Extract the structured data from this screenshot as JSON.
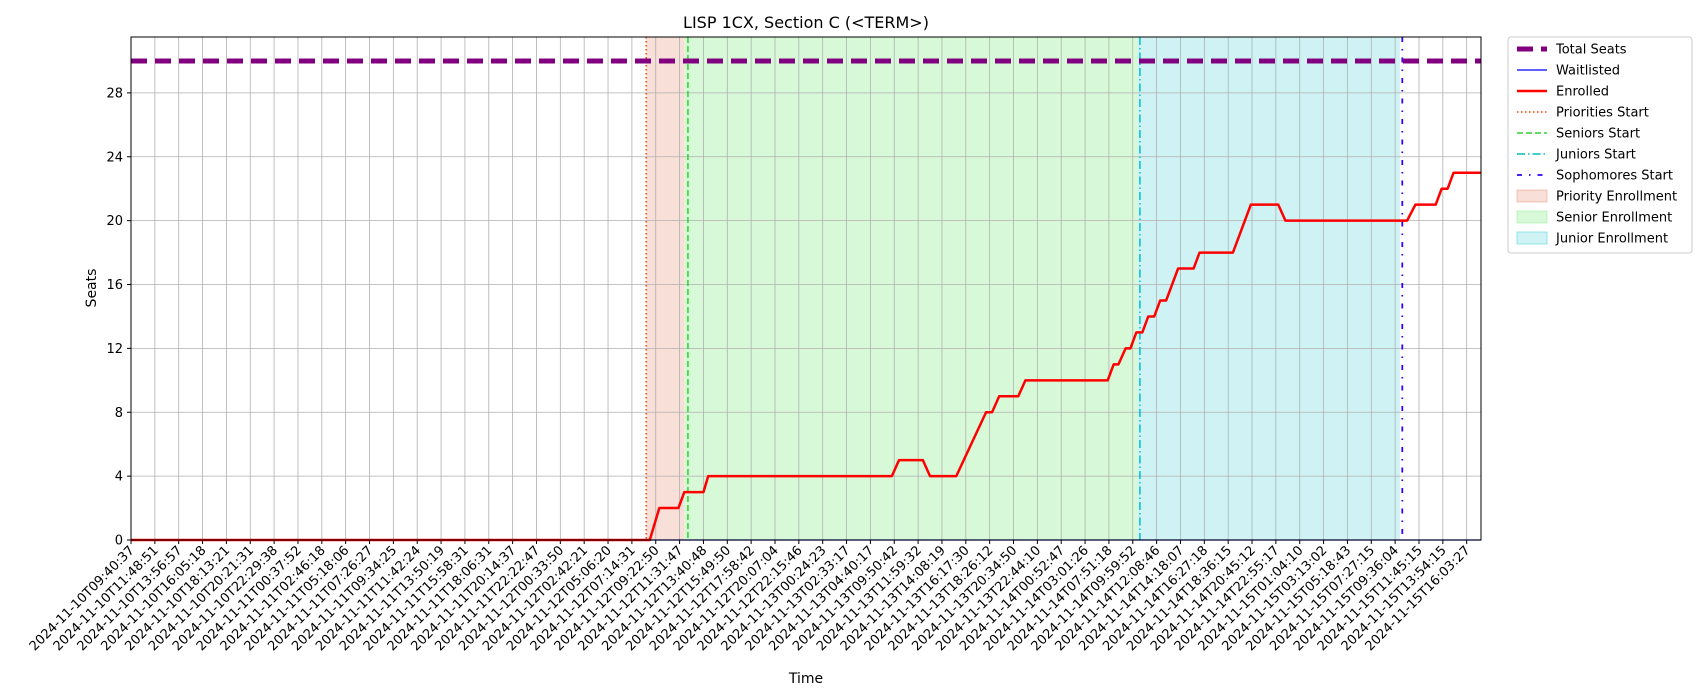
{
  "chart_data": {
    "type": "line",
    "title": "LISP 1CX, Section C (<TERM>)",
    "xlabel": "Time",
    "ylabel": "Seats",
    "grid": true,
    "legend_position": "outside-top-right",
    "y_ticks": [
      0,
      4,
      8,
      12,
      16,
      20,
      24,
      28
    ],
    "ylim": [
      0,
      31.5
    ],
    "x_tick_labels": [
      "2024-11-10T09:40:37",
      "2024-11-10T11:48:51",
      "2024-11-10T13:56:57",
      "2024-11-10T16:05:18",
      "2024-11-10T18:13:21",
      "2024-11-10T20:21:31",
      "2024-11-10T22:29:38",
      "2024-11-11T00:37:52",
      "2024-11-11T02:46:18",
      "2024-11-11T05:18:06",
      "2024-11-11T07:26:27",
      "2024-11-11T09:34:25",
      "2024-11-11T11:42:24",
      "2024-11-11T13:50:19",
      "2024-11-11T15:58:31",
      "2024-11-11T18:06:31",
      "2024-11-11T20:14:37",
      "2024-11-11T22:22:47",
      "2024-11-12T00:33:50",
      "2024-11-12T02:42:21",
      "2024-11-12T05:06:20",
      "2024-11-12T07:14:31",
      "2024-11-12T09:22:50",
      "2024-11-12T11:31:47",
      "2024-11-12T13:40:48",
      "2024-11-12T15:49:50",
      "2024-11-12T17:58:42",
      "2024-11-12T20:07:04",
      "2024-11-12T22:15:46",
      "2024-11-13T00:24:23",
      "2024-11-13T02:33:17",
      "2024-11-13T04:40:17",
      "2024-11-13T09:50:42",
      "2024-11-13T11:59:32",
      "2024-11-13T14:08:19",
      "2024-11-13T16:17:30",
      "2024-11-13T18:26:12",
      "2024-11-13T20:34:50",
      "2024-11-13T22:44:10",
      "2024-11-14T00:52:47",
      "2024-11-14T03:01:26",
      "2024-11-14T07:51:18",
      "2024-11-14T09:59:52",
      "2024-11-14T12:08:46",
      "2024-11-14T14:18:07",
      "2024-11-14T16:27:18",
      "2024-11-14T18:36:15",
      "2024-11-14T20:45:12",
      "2024-11-14T22:55:17",
      "2024-11-15T01:04:10",
      "2024-11-15T03:13:02",
      "2024-11-15T05:18:43",
      "2024-11-15T07:27:15",
      "2024-11-15T09:36:04",
      "2024-11-15T11:45:15",
      "2024-11-15T13:54:15",
      "2024-11-15T16:03:27"
    ],
    "x_range": [
      0,
      56.6
    ],
    "series": [
      {
        "name": "Total Seats",
        "color": "#800080",
        "style": "thick-dashed",
        "points": [
          [
            0,
            30
          ],
          [
            56.6,
            30
          ]
        ]
      },
      {
        "name": "Waitlisted",
        "color": "#0000ff",
        "style": "solid-thin",
        "points": [
          [
            0,
            0
          ],
          [
            56.6,
            0
          ]
        ]
      },
      {
        "name": "Enrolled",
        "color": "#ff0000",
        "style": "solid-thick",
        "points": [
          [
            0,
            0
          ],
          [
            21.75,
            0
          ],
          [
            22.15,
            2
          ],
          [
            22.95,
            2
          ],
          [
            23.2,
            3
          ],
          [
            24.0,
            3
          ],
          [
            24.2,
            4
          ],
          [
            31.9,
            4
          ],
          [
            32.2,
            5
          ],
          [
            33.2,
            5
          ],
          [
            33.5,
            4
          ],
          [
            34.6,
            4
          ],
          [
            35.85,
            8
          ],
          [
            36.1,
            8
          ],
          [
            36.4,
            9
          ],
          [
            37.2,
            9
          ],
          [
            37.5,
            10
          ],
          [
            40.95,
            10
          ],
          [
            41.2,
            11
          ],
          [
            41.4,
            11
          ],
          [
            41.7,
            12
          ],
          [
            41.9,
            12
          ],
          [
            42.15,
            13
          ],
          [
            42.4,
            13
          ],
          [
            42.65,
            14
          ],
          [
            42.9,
            14
          ],
          [
            43.15,
            15
          ],
          [
            43.4,
            15
          ],
          [
            43.9,
            17
          ],
          [
            44.55,
            17
          ],
          [
            44.8,
            18
          ],
          [
            46.2,
            18
          ],
          [
            46.95,
            21
          ],
          [
            48.1,
            21
          ],
          [
            48.4,
            20
          ],
          [
            53.5,
            20
          ],
          [
            53.85,
            21
          ],
          [
            54.7,
            21
          ],
          [
            54.95,
            22
          ],
          [
            55.2,
            22
          ],
          [
            55.45,
            23
          ],
          [
            56.6,
            23
          ]
        ]
      }
    ],
    "markers": [
      {
        "name": "Priorities Start",
        "x": 21.6,
        "color": "#ff4500",
        "style": "dotted"
      },
      {
        "name": "Seniors Start",
        "x": 23.35,
        "color": "#32cd32",
        "style": "dashed"
      },
      {
        "name": "Juniors Start",
        "x": 42.3,
        "color": "#00bfbf",
        "style": "dashdot"
      },
      {
        "name": "Sophomores Start",
        "x": 53.3,
        "color": "#3300ff",
        "style": "sparse-dashdot"
      }
    ],
    "regions": [
      {
        "name": "Priority Enrollment",
        "x0": 21.6,
        "x1": 23.2,
        "color": "#e9967a",
        "alpha": 0.3
      },
      {
        "name": "Senior Enrollment",
        "x0": 23.2,
        "x1": 42.2,
        "color": "#90ee90",
        "alpha": 0.35
      },
      {
        "name": "Junior Enrollment",
        "x0": 42.2,
        "x1": 53.2,
        "color": "#40d0d8",
        "alpha": 0.25
      }
    ],
    "legend": [
      {
        "label": "Total Seats",
        "kind": "line",
        "color": "#800080",
        "style": "thick-dashed"
      },
      {
        "label": "Waitlisted",
        "kind": "line",
        "color": "#0000ff",
        "style": "solid-thin"
      },
      {
        "label": "Enrolled",
        "kind": "line",
        "color": "#ff0000",
        "style": "solid-thick"
      },
      {
        "label": "Priorities Start",
        "kind": "line",
        "color": "#ff4500",
        "style": "dotted"
      },
      {
        "label": "Seniors Start",
        "kind": "line",
        "color": "#32cd32",
        "style": "dashed"
      },
      {
        "label": "Juniors Start",
        "kind": "line",
        "color": "#00bfbf",
        "style": "dashdot"
      },
      {
        "label": "Sophomores Start",
        "kind": "line",
        "color": "#3300ff",
        "style": "sparse-dashdot"
      },
      {
        "label": "Priority Enrollment",
        "kind": "patch",
        "color": "#e9967a",
        "alpha": 0.3
      },
      {
        "label": "Senior Enrollment",
        "kind": "patch",
        "color": "#90ee90",
        "alpha": 0.35
      },
      {
        "label": "Junior Enrollment",
        "kind": "patch",
        "color": "#40d0d8",
        "alpha": 0.25
      }
    ]
  }
}
